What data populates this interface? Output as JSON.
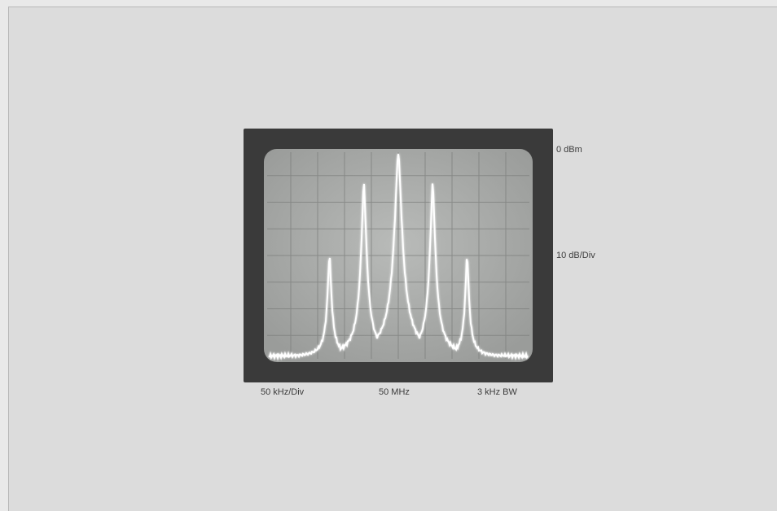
{
  "figure": {
    "right_labels": {
      "reference_level": "0 dBm",
      "vertical_scale": "10 dB/Div"
    },
    "bottom_labels": {
      "horizontal_scale": "50 kHz/Div",
      "center_frequency": "50 MHz",
      "bandwidth": "3 kHz  BW"
    },
    "spectrum": {
      "grid": true,
      "peaks": [
        {
          "offset_kHz": -100,
          "level_dB_below_ref": 20
        },
        {
          "offset_kHz": -50,
          "level_dB_below_ref": 6
        },
        {
          "offset_kHz": 0,
          "level_dB_below_ref": 0
        },
        {
          "offset_kHz": 50,
          "level_dB_below_ref": 6
        },
        {
          "offset_kHz": 100,
          "level_dB_below_ref": 20
        }
      ],
      "noise_floor_dB_below_ref": 40
    },
    "colors": {
      "background": "#dcdcdc",
      "bezel": "#3a3a3a",
      "screen": "#a9aba9",
      "trace": "#ffffff",
      "grid": "#7c7e7c"
    }
  }
}
